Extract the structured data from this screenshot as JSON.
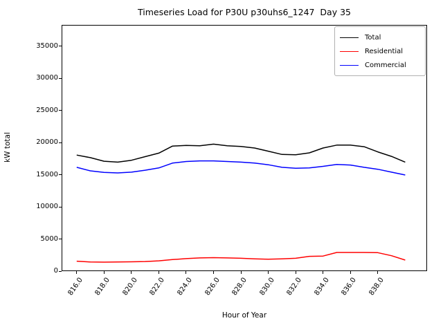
{
  "title": "Timeseries Load for P30U p30uhs6_1247  Day 35",
  "axes": {
    "xlabel": "Hour of Year",
    "ylabel": "kW total",
    "x_tick_labels": [
      "816.0",
      "818.0",
      "820.0",
      "822.0",
      "824.0",
      "826.0",
      "828.0",
      "830.0",
      "832.0",
      "834.0",
      "836.0",
      "838.0"
    ],
    "y_tick_labels": [
      "0",
      "5000",
      "10000",
      "15000",
      "20000",
      "25000",
      "30000",
      "35000"
    ]
  },
  "legend": {
    "position": "upper right",
    "entries": [
      {
        "label": "Total",
        "color": "#000000"
      },
      {
        "label": "Residential",
        "color": "#ff0000"
      },
      {
        "label": "Commercial",
        "color": "#0000ff"
      }
    ]
  },
  "chart_data": {
    "type": "line",
    "title": "Timeseries Load for P30U p30uhs6_1247  Day 35",
    "xlabel": "Hour of Year",
    "ylabel": "kW total",
    "x": [
      816,
      817,
      818,
      819,
      820,
      821,
      822,
      823,
      824,
      825,
      826,
      827,
      828,
      829,
      830,
      831,
      832,
      833,
      834,
      835,
      836,
      837,
      838,
      839,
      840
    ],
    "series": [
      {
        "name": "Total",
        "color": "#000000",
        "values": [
          18050,
          17650,
          17100,
          16950,
          17250,
          17800,
          18350,
          19450,
          19550,
          19500,
          19750,
          19500,
          19400,
          19150,
          18650,
          18150,
          18100,
          18400,
          19150,
          19600,
          19600,
          19350,
          18550,
          17850,
          16950
        ]
      },
      {
        "name": "Residential",
        "color": "#ff0000",
        "values": [
          1550,
          1420,
          1400,
          1420,
          1450,
          1500,
          1600,
          1800,
          1950,
          2050,
          2100,
          2050,
          2000,
          1900,
          1850,
          1900,
          2000,
          2300,
          2350,
          2900,
          2900,
          2900,
          2870,
          2400,
          1720
        ]
      },
      {
        "name": "Commercial",
        "color": "#0000ff",
        "values": [
          16150,
          15600,
          15350,
          15280,
          15400,
          15700,
          16050,
          16800,
          17050,
          17150,
          17150,
          17050,
          16950,
          16800,
          16550,
          16150,
          16000,
          16050,
          16300,
          16600,
          16500,
          16150,
          15850,
          15400,
          14950
        ]
      }
    ],
    "xlim": [
      814.9,
      841.6
    ],
    "ylim": [
      0,
      38300
    ],
    "x_tick_values": [
      816,
      818,
      820,
      822,
      824,
      826,
      828,
      830,
      832,
      834,
      836,
      838
    ],
    "y_tick_values": [
      0,
      5000,
      10000,
      15000,
      20000,
      25000,
      30000,
      35000
    ],
    "grid": false,
    "legend_position": "upper right"
  }
}
